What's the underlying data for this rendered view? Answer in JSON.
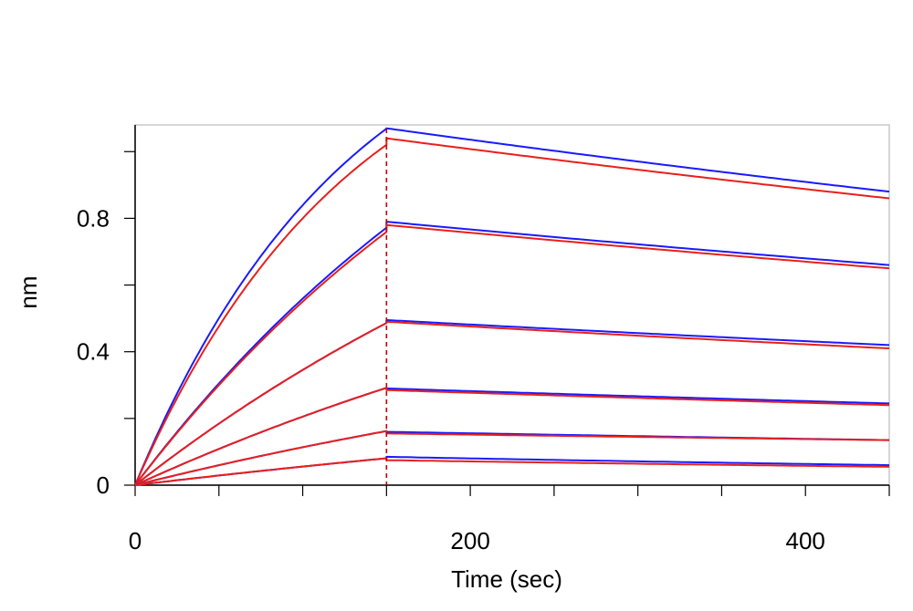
{
  "chart_data": {
    "type": "line",
    "xlabel": "Time (sec)",
    "ylabel": "nm",
    "xlim": [
      0,
      450
    ],
    "ylim": [
      0,
      1.08
    ],
    "x_ticks": [
      0,
      200,
      400
    ],
    "x_tick_labels": [
      "0",
      "200",
      "400"
    ],
    "y_ticks": [
      0,
      0.4,
      0.8
    ],
    "y_tick_labels": [
      "0",
      "0.4",
      "0.8"
    ],
    "x_minor_ticks": [
      0,
      50,
      100,
      150,
      200,
      250,
      300,
      350,
      400,
      450
    ],
    "y_minor_ticks": [
      0,
      0.2,
      0.4,
      0.6,
      0.8,
      1.0
    ],
    "grid": false,
    "legend": "none",
    "association_end": 150,
    "colors": {
      "measured": "#1a1aff",
      "fit": "#e8201c",
      "marker": "#c00000",
      "frame": "#c8c8c8"
    },
    "series": [
      {
        "role": "measured",
        "association": {
          "plateau": 1.55,
          "k": 0.0078
        },
        "dissociation": {
          "start": 1.07,
          "end": 0.88
        }
      },
      {
        "role": "fit",
        "association": {
          "plateau": 1.49,
          "k": 0.0077
        },
        "dissociation": {
          "start": 1.04,
          "end": 0.86
        }
      },
      {
        "role": "measured",
        "association": {
          "plateau": 1.85,
          "k": 0.0036
        },
        "dissociation": {
          "start": 0.79,
          "end": 0.66
        }
      },
      {
        "role": "fit",
        "association": {
          "plateau": 1.82,
          "k": 0.0036
        },
        "dissociation": {
          "start": 0.78,
          "end": 0.65
        }
      },
      {
        "role": "measured",
        "association": {
          "plateau": 1.46,
          "k": 0.0027
        },
        "dissociation": {
          "start": 0.495,
          "end": 0.42
        }
      },
      {
        "role": "fit",
        "association": {
          "plateau": 1.46,
          "k": 0.0027
        },
        "dissociation": {
          "start": 0.49,
          "end": 0.41
        }
      },
      {
        "role": "measured",
        "association": {
          "plateau": 1.0,
          "k": 0.0023
        },
        "dissociation": {
          "start": 0.29,
          "end": 0.245
        }
      },
      {
        "role": "fit",
        "association": {
          "plateau": 1.0,
          "k": 0.0023
        },
        "dissociation": {
          "start": 0.285,
          "end": 0.24
        }
      },
      {
        "role": "measured",
        "association": {
          "plateau": 0.6,
          "k": 0.0021
        },
        "dissociation": {
          "start": 0.16,
          "end": 0.135
        }
      },
      {
        "role": "fit",
        "association": {
          "plateau": 0.6,
          "k": 0.0021
        },
        "dissociation": {
          "start": 0.155,
          "end": 0.135
        }
      },
      {
        "role": "measured",
        "association": {
          "plateau": 0.4,
          "k": 0.0015
        },
        "dissociation": {
          "start": 0.085,
          "end": 0.06
        }
      },
      {
        "role": "fit",
        "association": {
          "plateau": 0.4,
          "k": 0.0015
        },
        "dissociation": {
          "start": 0.075,
          "end": 0.055
        }
      }
    ]
  }
}
